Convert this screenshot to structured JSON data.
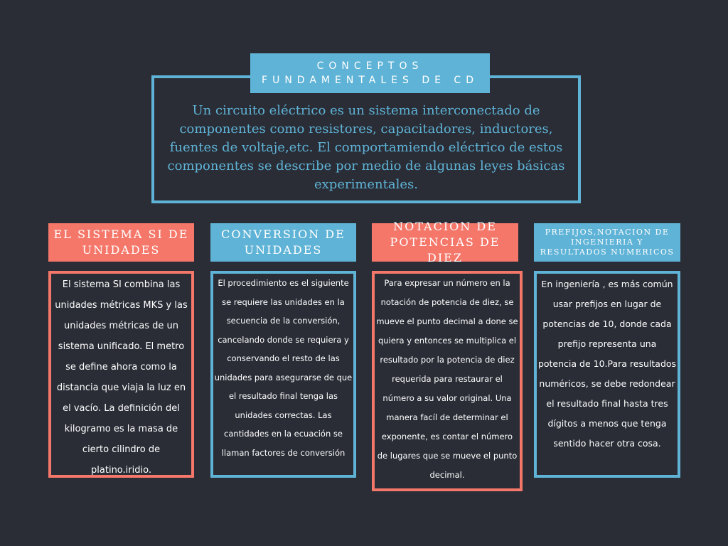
{
  "header": {
    "title": "CONCEPTOS FUNDAMENTALES DE CD",
    "description": " Un circuito eléctrico es un sistema interconectado de componentes como resistores, capacitadores, inductores, fuentes de voltaje,etc. El comportamiendo eléctrico de estos componentes se describe por medio de algunas leyes básicas experimentales."
  },
  "columns": [
    {
      "title": "EL SISTEMA SI DE UNIDADES",
      "text": "El sistema SI combina las unidades métricas MKS y las unidades métricas de un sistema unificado. El metro se define ahora como la distancia que viaja la luz en el vacío. La definición del kilogramo es la masa de cierto cilindro de platino.iridio."
    },
    {
      "title": "CONVERSION DE UNIDADES",
      "text": "El procedimiento es el siguiente se requiere las unidades en la secuencia de la conversión, cancelando donde se requiera y conservando el resto de las unidades para asegurarse de que el resultado final tenga las unidades correctas. Las cantidades en la ecuación se llaman factores de conversión"
    },
    {
      "title": "NOTACION DE POTENCIAS DE DIEZ",
      "text": "Para expresar un número en la notación de potencia de diez, se mueve el punto decimal a done se quiera y entonces se multiplica el resultado por la potencia de diez requerida para restaurar el número a su valor original. Una manera facíl de determinar el exponente, es contar el número de lugares que se mueve el punto decimal."
    },
    {
      "title": "PREFIJOS,NOTACION DE INGENIERIA Y RESULTADOS NUMERICOS",
      "text": "En ingeniería , es más común usar prefijos en lugar de potencias de 10, donde cada prefijo representa una potencia de 10.Para resultados numéricos, se debe redondear el resultado final hasta tres dígitos a menos que tenga sentido hacer otra cosa."
    }
  ],
  "colors": {
    "background": "#2a2d36",
    "blue": "#5fb3d6",
    "salmon": "#f4776a",
    "text": "#ffffff"
  }
}
